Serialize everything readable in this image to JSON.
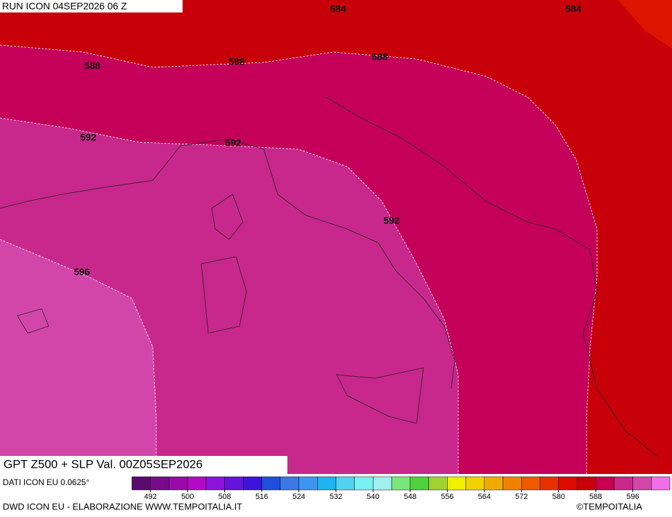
{
  "header": {
    "run": "RUN ICON 04SEP2026 06 Z"
  },
  "map": {
    "contour_labels": [
      584,
      584,
      588,
      588,
      588,
      592,
      592,
      592,
      596
    ]
  },
  "footer": {
    "title": "GPT Z500 + SLP Val. 00Z05SEP2026",
    "data_source": "DATI ICON EU 0.0625°",
    "credit": "DWD ICON EU - ELABORAZIONE WWW.TEMPOITALIA.IT",
    "copyright": "©TEMPOITALIA"
  },
  "colorbar": {
    "lim": [
      488,
      604
    ],
    "ticks": [
      492,
      500,
      508,
      516,
      524,
      532,
      540,
      548,
      556,
      564,
      572,
      580,
      588,
      596
    ],
    "colors": [
      "#5a0a6e",
      "#7a0a8c",
      "#9a0aaa",
      "#b40ac8",
      "#8c14dc",
      "#6414dc",
      "#3c14dc",
      "#1e50dc",
      "#3c78e6",
      "#3c96f0",
      "#1eb4f0",
      "#50d2f0",
      "#78f0f0",
      "#a0f0f0",
      "#78e678",
      "#50d23c",
      "#a0d232",
      "#f0f000",
      "#f0d200",
      "#f0aa00",
      "#f08200",
      "#f05a00",
      "#e63200",
      "#dc0a00",
      "#c8000a",
      "#c80050",
      "#c8288c",
      "#d246aa",
      "#f06ee6"
    ]
  }
}
